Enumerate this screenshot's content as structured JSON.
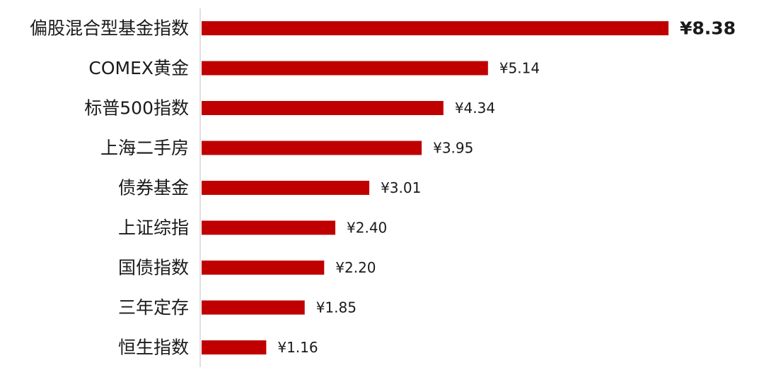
{
  "chart_data": {
    "type": "bar",
    "orientation": "horizontal",
    "categories": [
      "偏股混合型基金指数",
      "COMEX黄金",
      "标普500指数",
      "上海二手房",
      "债券基金",
      "上证综指",
      "国债指数",
      "三年定存",
      "恒生指数"
    ],
    "values": [
      8.38,
      5.14,
      4.34,
      3.95,
      3.01,
      2.4,
      2.2,
      1.85,
      1.16
    ],
    "value_labels": [
      "¥8.38",
      "¥5.14",
      "¥4.34",
      "¥3.95",
      "¥3.01",
      "¥2.40",
      "¥2.20",
      "¥1.85",
      "¥1.16"
    ],
    "highlight_index": 0,
    "bar_color": "#C00000",
    "axis_color": "#BFBFBF",
    "title": "",
    "xlabel": "",
    "ylabel": "",
    "grid": false,
    "legend": "none"
  }
}
